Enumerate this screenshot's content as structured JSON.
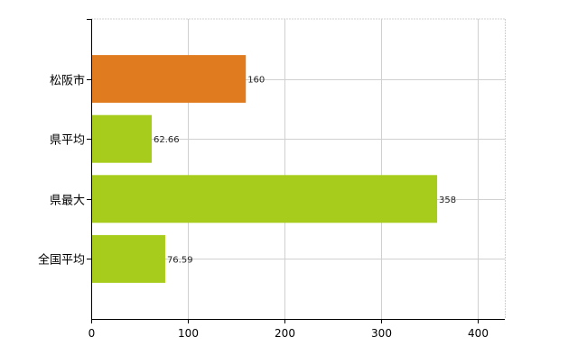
{
  "chart_data": {
    "type": "bar",
    "orientation": "horizontal",
    "categories": [
      "松阪市",
      "県平均",
      "県最大",
      "全国平均"
    ],
    "values": [
      160,
      62.66,
      358,
      76.59
    ],
    "value_labels": [
      "160",
      "62.66",
      "358",
      "76.59"
    ],
    "bar_colors": [
      "#e07b1f",
      "#a8cc1c",
      "#a8cc1c",
      "#a8cc1c"
    ],
    "xlim": [
      0,
      430
    ],
    "x_ticks": [
      0,
      100,
      200,
      300,
      400
    ],
    "x_tick_labels": [
      "0",
      "100",
      "200",
      "300",
      "400"
    ],
    "grid": true,
    "legend": "none",
    "title": "",
    "xlabel": "",
    "ylabel": ""
  },
  "colors": {
    "highlight": "#e07b1f",
    "default_bar": "#a8cc1c",
    "grid": "#d0d0d0",
    "axis": "#000000"
  }
}
